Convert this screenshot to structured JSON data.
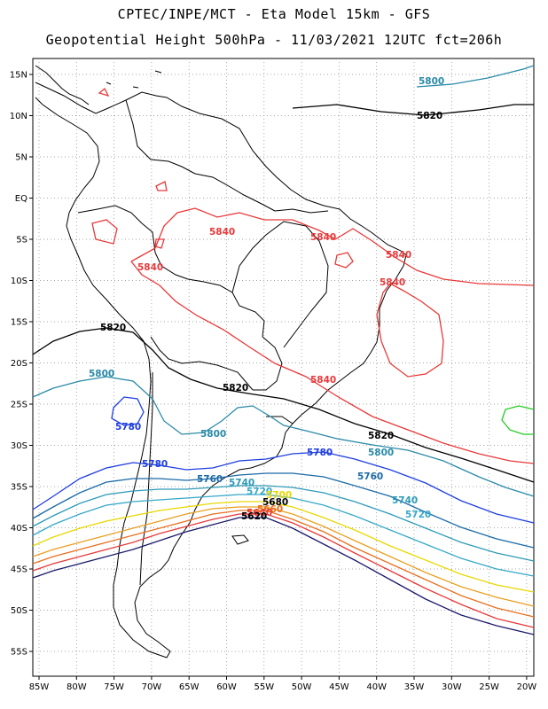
{
  "header": {
    "line1": "CPTEC/INPE/MCT  -   Eta Model 15km  -  GFS",
    "line2": "Geopotential Height 500hPa - 11/03/2021 12UTC fct=206h"
  },
  "axes": {
    "lat_labels": [
      "15N",
      "10N",
      "5N",
      "EQ",
      "5S",
      "10S",
      "15S",
      "20S",
      "25S",
      "30S",
      "35S",
      "40S",
      "45S",
      "50S",
      "55S"
    ],
    "lon_labels": [
      "85W",
      "80W",
      "75W",
      "70W",
      "65W",
      "60W",
      "55W",
      "50W",
      "45W",
      "40W",
      "35W",
      "30W",
      "25W",
      "20W"
    ]
  },
  "contour_labels": [
    {
      "text": "5800",
      "color": "#2a8aa8"
    },
    {
      "text": "5820",
      "color": "#000000"
    },
    {
      "text": "5840",
      "color": "#e8393a"
    },
    {
      "text": "5840",
      "color": "#e8393a"
    },
    {
      "text": "5840",
      "color": "#e8393a"
    },
    {
      "text": "5840",
      "color": "#e8393a"
    },
    {
      "text": "5840",
      "color": "#e8393a"
    },
    {
      "text": "5820",
      "color": "#000000"
    },
    {
      "text": "5800",
      "color": "#2a8aa8"
    },
    {
      "text": "5780",
      "color": "#1f3ee0"
    },
    {
      "text": "5820",
      "color": "#000000"
    },
    {
      "text": "5840",
      "color": "#e8393a"
    },
    {
      "text": "5800",
      "color": "#2a8aa8"
    },
    {
      "text": "5820",
      "color": "#000000"
    },
    {
      "text": "5780",
      "color": "#1f3ee0"
    },
    {
      "text": "5800",
      "color": "#2a8aa8"
    },
    {
      "text": "5780",
      "color": "#1f3ee0"
    },
    {
      "text": "5760",
      "color": "#1a6aa6"
    },
    {
      "text": "5740",
      "color": "#2d9bb8"
    },
    {
      "text": "5720",
      "color": "#36a8c8"
    },
    {
      "text": "5760",
      "color": "#1a6aa6"
    },
    {
      "text": "5740",
      "color": "#2d9bb8"
    },
    {
      "text": "5720",
      "color": "#36a8c8"
    },
    {
      "text": "5700",
      "color": "#e8d800"
    },
    {
      "text": "5680",
      "color": "#000000"
    },
    {
      "text": "5660",
      "color": "#e87020"
    },
    {
      "text": "5640",
      "color": "#e8393a"
    },
    {
      "text": "5620",
      "color": "#000000"
    }
  ],
  "contour_colors": {
    "h5840": "#e8393a",
    "h5820": "#000000",
    "h5800": "#2a8aa8",
    "h5780": "#1f3ee0",
    "h5760": "#1a6aa6",
    "h5740": "#2d9bb8",
    "h5720": "#36a8c8",
    "h5700": "#e8d800",
    "h5680": "#e8a020",
    "h5660": "#e87020",
    "h5640": "#e8393a",
    "h5620": "#1a1a6a",
    "green_cell": "#22cc22"
  }
}
